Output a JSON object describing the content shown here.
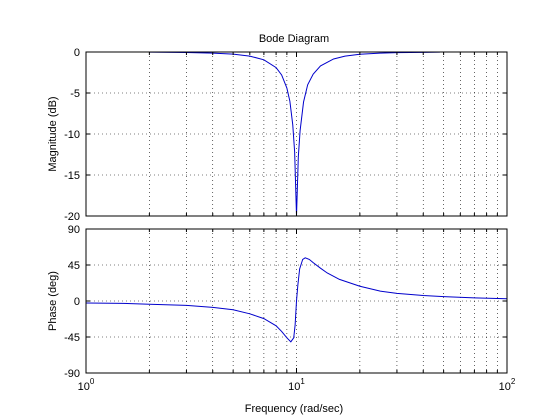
{
  "chart_data": {
    "type": "line",
    "title": "Bode Diagram",
    "xlabel": "Frequency  (rad/sec)",
    "x_scale": "log",
    "xlim": [
      1,
      100
    ],
    "x_ticks": [
      {
        "value": 1,
        "base": "10",
        "exp": "0"
      },
      {
        "value": 10,
        "base": "10",
        "exp": "1"
      },
      {
        "value": 100,
        "base": "10",
        "exp": "2"
      }
    ],
    "grid": true,
    "line_color": "#0000cc",
    "panels": [
      {
        "ylabel": "Magnitude (dB)",
        "ylim": [
          -20,
          0
        ],
        "y_ticks": [
          0,
          -5,
          -10,
          -15,
          -20
        ],
        "y_tick_labels": [
          "0",
          "-5",
          "-10",
          "-15",
          "-20"
        ],
        "x": [
          2.0,
          3.0,
          4.0,
          5.0,
          6.0,
          7.0,
          8.0,
          8.5,
          9.0,
          9.3,
          9.6,
          9.8,
          10.0,
          10.2,
          10.4,
          10.8,
          11.3,
          12.0,
          13.0,
          15.0,
          17.0,
          20.0,
          25.0,
          30.0,
          40.0,
          48.0
        ],
        "y": [
          -0.02,
          -0.06,
          -0.13,
          -0.26,
          -0.5,
          -0.95,
          -1.9,
          -2.8,
          -4.4,
          -6.0,
          -8.9,
          -12.2,
          -20.0,
          -12.8,
          -9.6,
          -6.1,
          -4.0,
          -2.7,
          -1.7,
          -0.85,
          -0.5,
          -0.28,
          -0.14,
          -0.08,
          -0.04,
          -0.02
        ]
      },
      {
        "ylabel": "Phase (deg)",
        "ylim": [
          -90,
          90
        ],
        "y_ticks": [
          90,
          45,
          0,
          -45,
          -90
        ],
        "y_tick_labels": [
          "90",
          "45",
          "0",
          "-45",
          "-90"
        ],
        "x": [
          1.0,
          1.5,
          2.0,
          3.0,
          4.0,
          5.0,
          6.0,
          7.0,
          8.0,
          8.5,
          9.0,
          9.4,
          9.7,
          9.85,
          10.0,
          10.15,
          10.35,
          10.7,
          11.0,
          11.5,
          12.0,
          13.0,
          14.0,
          16.0,
          20.0,
          25.0,
          30.0,
          40.0,
          50.0,
          70.0,
          100.0
        ],
        "y": [
          -2.5,
          -3,
          -4,
          -5.5,
          -8,
          -11,
          -16,
          -22,
          -31,
          -38,
          -46,
          -51,
          -46,
          -30,
          0,
          20,
          40,
          52,
          54,
          52,
          48,
          41,
          35,
          27,
          18.4,
          12.3,
          9.6,
          6.9,
          5.4,
          3.9,
          2.8
        ]
      }
    ]
  }
}
